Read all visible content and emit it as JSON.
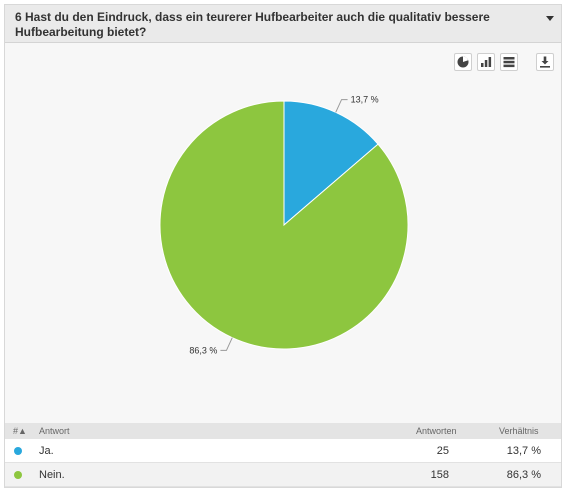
{
  "question": {
    "title": "6 Hast du den Eindruck, dass ein teurerer Hufbearbeiter auch die qualitativ bessere Hufbearbeitung bietet?"
  },
  "toolbar": {
    "buttons": [
      "pie-chart-icon",
      "bar-chart-icon",
      "table-view-icon",
      "download-icon"
    ]
  },
  "colors": {
    "ja": "#29a8dd",
    "nein": "#8dc63f"
  },
  "chart_data": {
    "type": "pie",
    "labels": [
      "Ja.",
      "Nein."
    ],
    "values": [
      13.7,
      86.3
    ],
    "data_labels": [
      "13,7 %",
      "86,3 %"
    ],
    "colors": [
      "#29a8dd",
      "#8dc63f"
    ]
  },
  "table": {
    "columns": {
      "index": "#",
      "answer": "Antwort",
      "count": "Antworten",
      "ratio": "Verhältnis"
    },
    "rows": [
      {
        "label": "Ja.",
        "count": "25",
        "ratio": "13,7 %",
        "color": "#29a8dd"
      },
      {
        "label": "Nein.",
        "count": "158",
        "ratio": "86,3 %",
        "color": "#8dc63f"
      }
    ]
  }
}
